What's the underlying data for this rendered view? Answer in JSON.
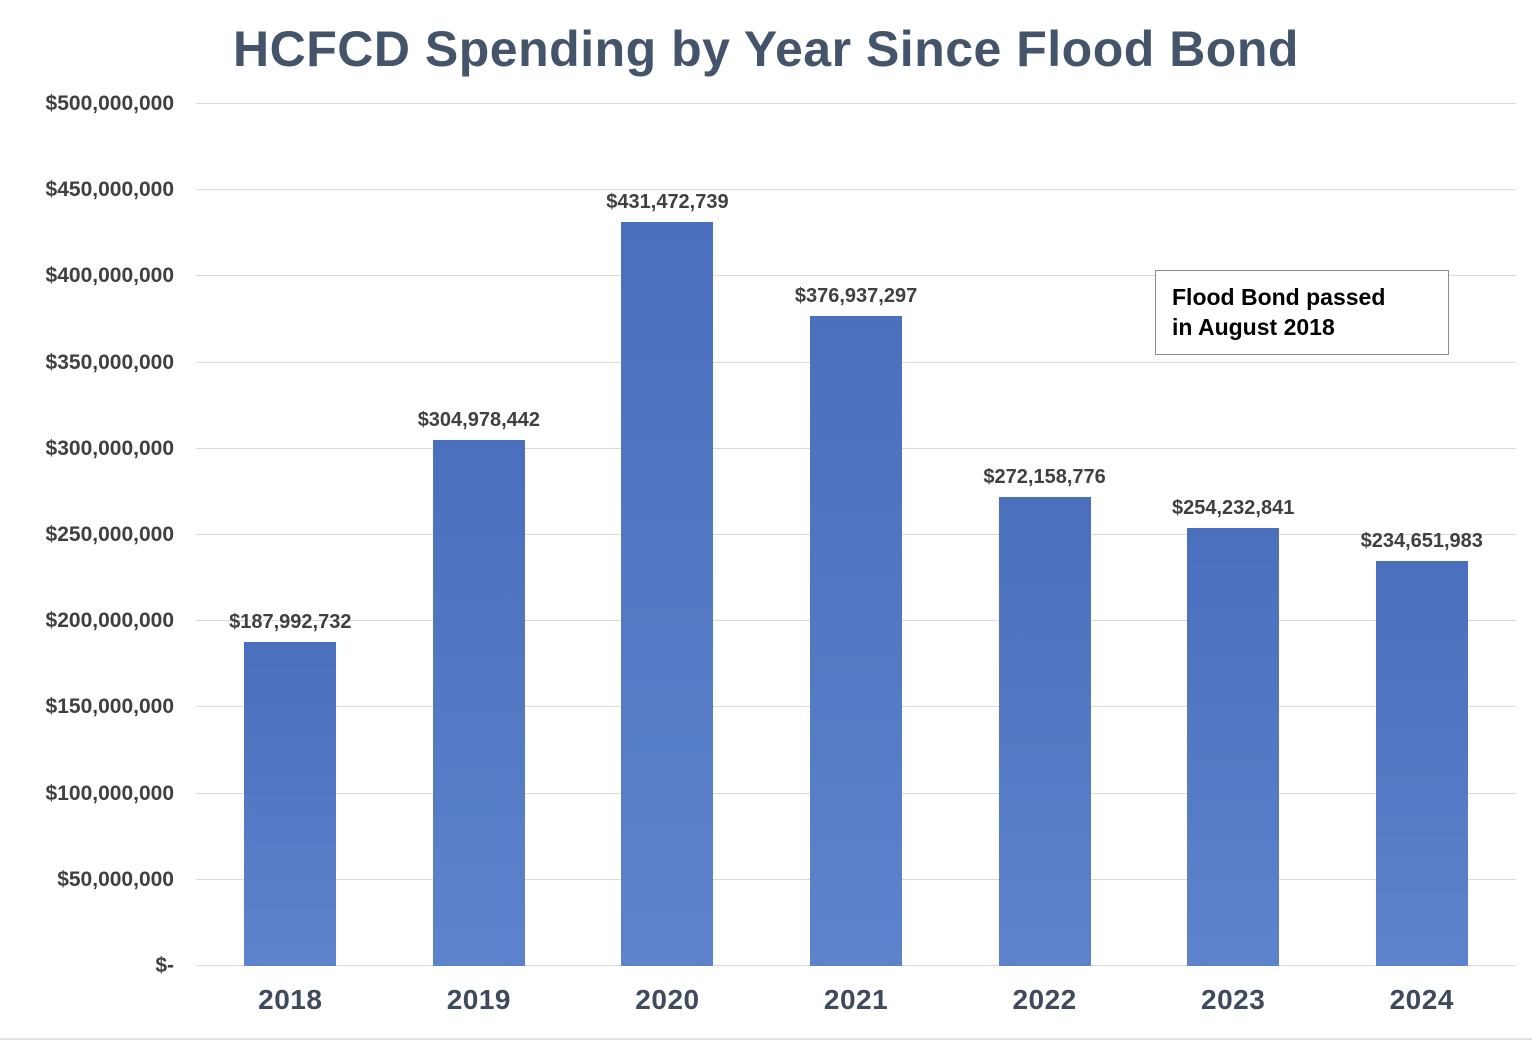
{
  "title": "HCFCD Spending by Year Since Flood Bond",
  "annotation": {
    "line1": "Flood Bond passed",
    "line2": "in August 2018"
  },
  "colors": {
    "bar_top": "#4a6fbd",
    "bar_bottom": "#5c83cb",
    "grid": "#d9d9d9",
    "title_text": "#44546A",
    "label_text": "#404040"
  },
  "chart_data": {
    "type": "bar",
    "title": "HCFCD Spending by Year Since Flood Bond",
    "categories": [
      "2018",
      "2019",
      "2020",
      "2021",
      "2022",
      "2023",
      "2024"
    ],
    "values": [
      187992732,
      304978442,
      431472739,
      376937297,
      272158776,
      254232841,
      234651983
    ],
    "labels": [
      "$187,992,732",
      "$304,978,442",
      "$431,472,739",
      "$376,937,297",
      "$272,158,776",
      "$254,232,841",
      "$234,651,983"
    ],
    "xlabel": "",
    "ylabel": "",
    "ylim": [
      0,
      500000000
    ],
    "ytick_step": 50000000,
    "ytick_labels": [
      "$-",
      "$50,000,000",
      "$100,000,000",
      "$150,000,000",
      "$200,000,000",
      "$250,000,000",
      "$300,000,000",
      "$350,000,000",
      "$400,000,000",
      "$450,000,000",
      "$500,000,000"
    ],
    "grid": true,
    "legend": "none",
    "annotation": "Flood Bond passed in August 2018"
  }
}
